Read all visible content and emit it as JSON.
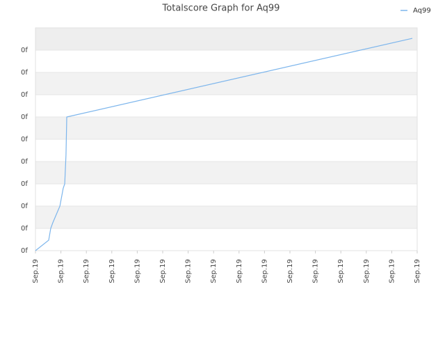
{
  "chart_data": {
    "type": "line",
    "title": "Totalscore Graph for Aq99",
    "x": [
      0,
      0.52,
      0.6,
      0.68,
      0.96,
      1.09,
      1.15,
      1.2,
      1.23,
      14.81
    ],
    "series": [
      {
        "name": "Aq99",
        "color": "#7cb5ec",
        "values": [
          0,
          0.47,
          1.0,
          1.25,
          2.0,
          2.8,
          3.0,
          4.3,
          6.0,
          9.53
        ]
      }
    ],
    "xlim": [
      0,
      15
    ],
    "xticks": [
      {
        "value": 0,
        "label": "Sep.19"
      },
      {
        "value": 1,
        "label": "Sep.19"
      },
      {
        "value": 2,
        "label": "Sep.19"
      },
      {
        "value": 3,
        "label": "Sep.19"
      },
      {
        "value": 4,
        "label": "Sep.19"
      },
      {
        "value": 5,
        "label": "Sep.19"
      },
      {
        "value": 6,
        "label": "Sep.19"
      },
      {
        "value": 7,
        "label": "Sep.19"
      },
      {
        "value": 8,
        "label": "Sep.19"
      },
      {
        "value": 9,
        "label": "Sep.19"
      },
      {
        "value": 10,
        "label": "Sep.19"
      },
      {
        "value": 11,
        "label": "Sep.19"
      },
      {
        "value": 12,
        "label": "Sep.19"
      },
      {
        "value": 13,
        "label": "Sep.19"
      },
      {
        "value": 14,
        "label": "Sep.19"
      },
      {
        "value": 15,
        "label": "Sep.19"
      }
    ],
    "ylim": [
      0,
      10
    ],
    "yticks": [
      {
        "value": 0,
        "label": "0f"
      },
      {
        "value": 1,
        "label": "0f"
      },
      {
        "value": 2,
        "label": "0f"
      },
      {
        "value": 3,
        "label": "0f"
      },
      {
        "value": 4,
        "label": "0f"
      },
      {
        "value": 5,
        "label": "0f"
      },
      {
        "value": 6,
        "label": "0f"
      },
      {
        "value": 7,
        "label": "0f"
      },
      {
        "value": 8,
        "label": "0f"
      },
      {
        "value": 9,
        "label": "0f"
      }
    ],
    "grid": true,
    "legend": "top-right"
  }
}
